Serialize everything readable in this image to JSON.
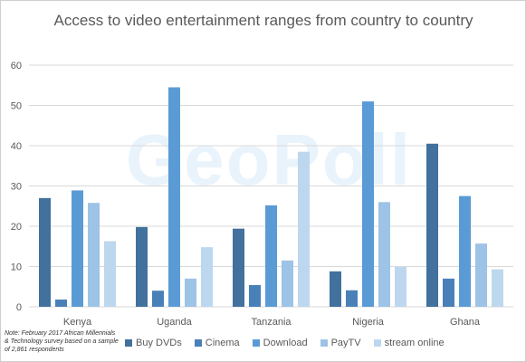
{
  "title": "Access to video entertainment ranges from country to country",
  "watermark": "GeoPoll",
  "note": "Note: February 2017 African Millennials & Technology survey based on a sample of 2,861 respondents",
  "chart_data": {
    "type": "bar",
    "categories": [
      "Kenya",
      "Uganda",
      "Tanzania",
      "Nigeria",
      "Ghana"
    ],
    "series": [
      {
        "name": "Buy DVDs",
        "color": "#41719c",
        "values": [
          27,
          19.8,
          19.4,
          8.8,
          40.5
        ]
      },
      {
        "name": "Cinema",
        "color": "#4a80b8",
        "values": [
          1.8,
          4,
          5.4,
          4.1,
          7
        ]
      },
      {
        "name": "Download",
        "color": "#5b9bd5",
        "values": [
          28.9,
          54.5,
          25.2,
          51,
          27.5
        ]
      },
      {
        "name": "PayTV",
        "color": "#9dc3e6",
        "values": [
          25.8,
          7,
          11.5,
          26,
          15.7
        ]
      },
      {
        "name": "stream online",
        "color": "#bdd7ee",
        "values": [
          16.3,
          14.8,
          38.5,
          9.9,
          9.3
        ]
      }
    ],
    "ylim": [
      0,
      60
    ],
    "yticks": [
      0,
      10,
      20,
      30,
      40,
      50,
      60
    ],
    "grid": true,
    "legend_position": "bottom"
  }
}
